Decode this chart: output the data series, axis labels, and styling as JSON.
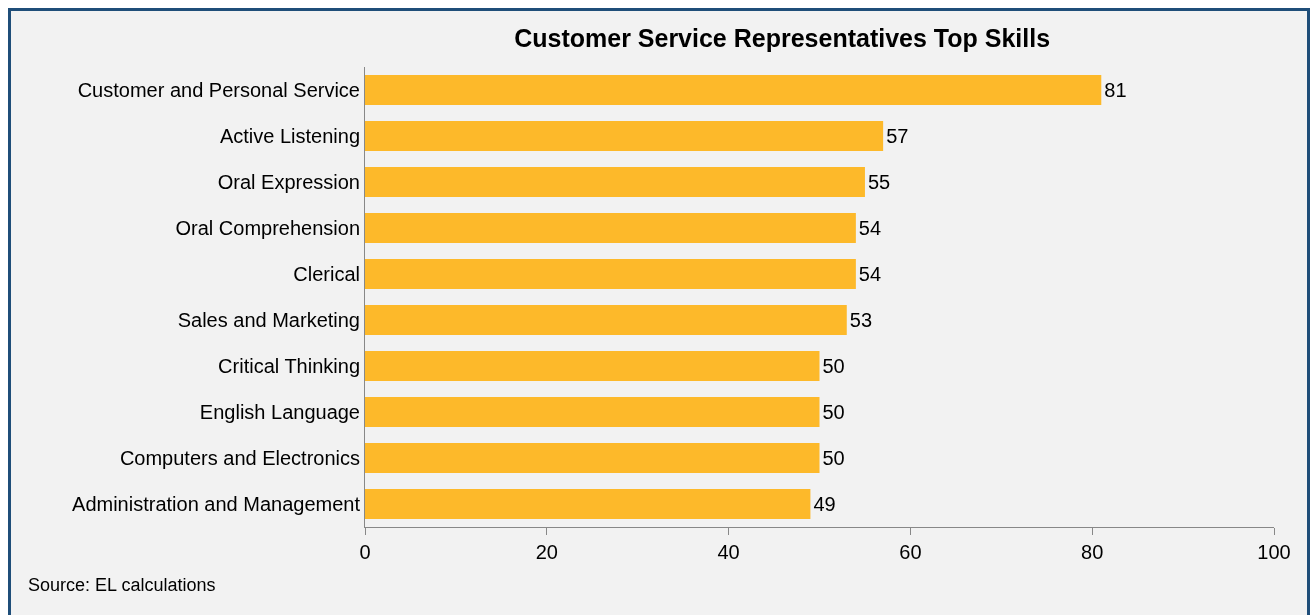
{
  "chart_data": {
    "type": "bar",
    "orientation": "horizontal",
    "title": "Customer Service Representatives Top Skills",
    "categories": [
      "Customer and Personal Service",
      "Active Listening",
      "Oral Expression",
      "Oral Comprehension",
      "Clerical",
      "Sales and Marketing",
      "Critical Thinking",
      "English Language",
      "Computers and Electronics",
      "Administration and Management"
    ],
    "values": [
      81,
      57,
      55,
      54,
      54,
      53,
      50,
      50,
      50,
      49
    ],
    "color": "#fdb92a",
    "xlim": [
      0,
      100
    ],
    "xticks": [
      0,
      20,
      40,
      60,
      80,
      100
    ],
    "grid": false,
    "legend": false,
    "data_labels": true,
    "annotations": [
      "Source: EL calculations"
    ]
  }
}
